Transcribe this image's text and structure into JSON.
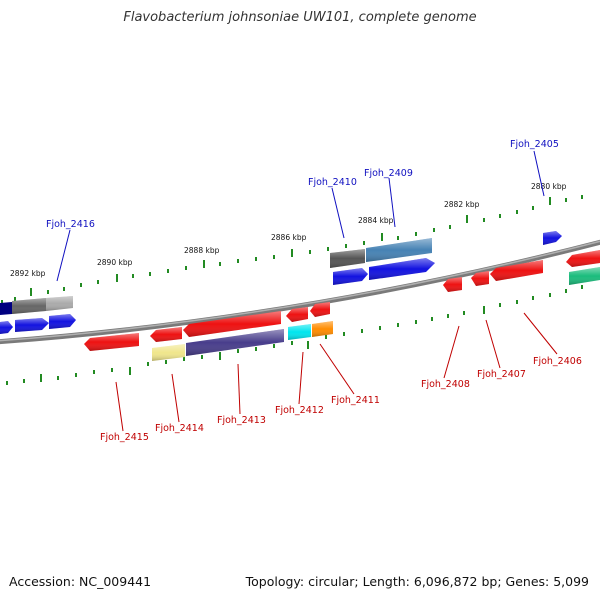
{
  "title": "Flavobacterium johnsoniae UW101, complete genome",
  "footer": {
    "accession": "Accession: NC_009441",
    "summary": "Topology: circular; Length: 6,096,872 bp; Genes: 5,099"
  },
  "ticks": [
    "2892 kbp",
    "2890 kbp",
    "2888 kbp",
    "2886 kbp",
    "2884 kbp",
    "2882 kbp",
    "2880 kbp"
  ],
  "forward_labels": [
    "Fjoh_2416",
    "Fjoh_2410",
    "Fjoh_2409",
    "Fjoh_2405"
  ],
  "reverse_labels": [
    "Fjoh_2415",
    "Fjoh_2414",
    "Fjoh_2413",
    "Fjoh_2412",
    "Fjoh_2411",
    "Fjoh_2408",
    "Fjoh_2407",
    "Fjoh_2406"
  ],
  "colors": {
    "forward_label": "#1010c0",
    "reverse_label": "#c00000",
    "cds_forward": "#1212e0",
    "cds_reverse": "#ee1111",
    "tick_mark": "#228b22",
    "backbone": "#808080"
  }
}
